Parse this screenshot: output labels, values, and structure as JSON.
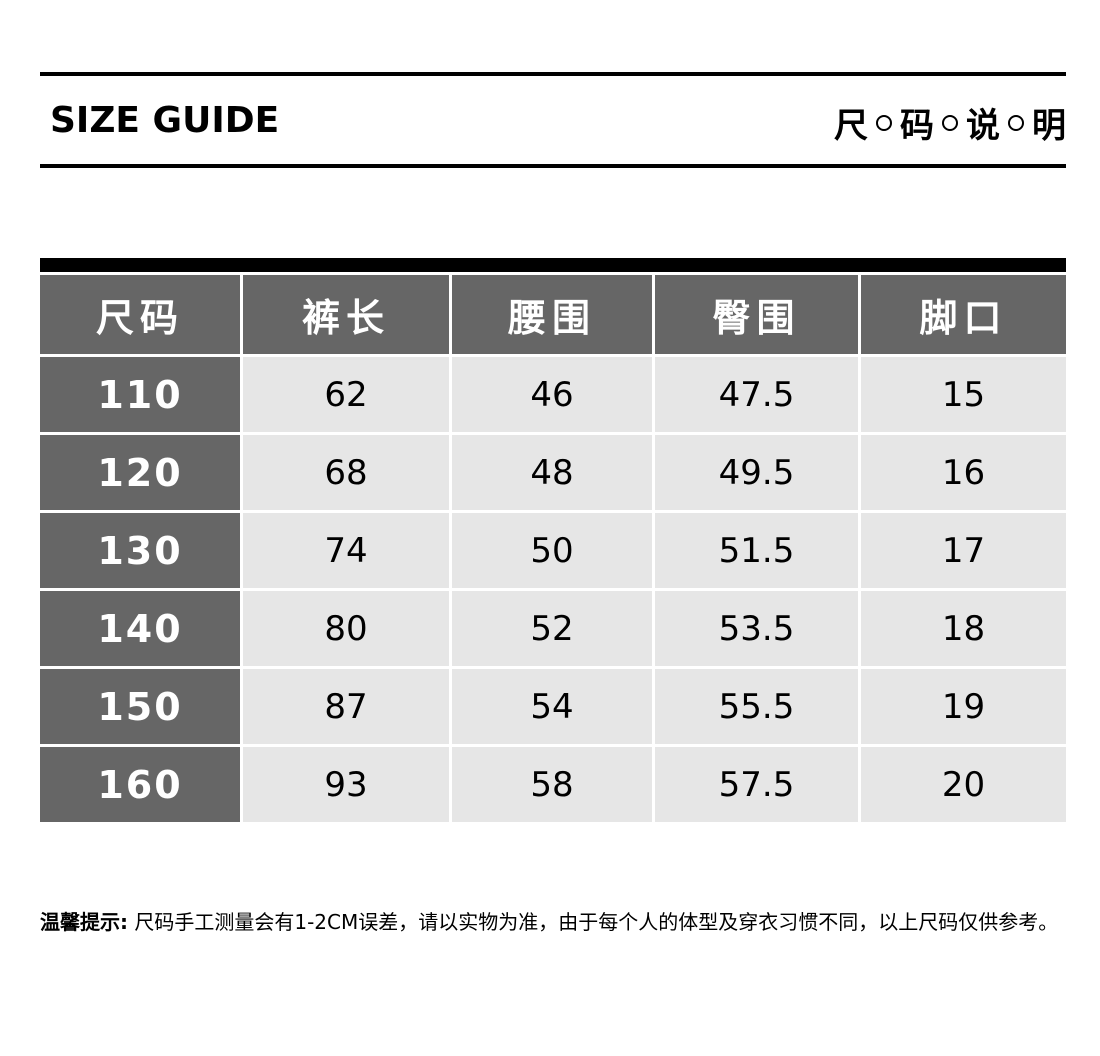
{
  "header": {
    "title_en": "SIZE GUIDE",
    "title_cn": [
      "尺",
      "码",
      "说",
      "明"
    ]
  },
  "table": {
    "columns": [
      "尺码",
      "裤长",
      "腰围",
      "臀围",
      "脚口"
    ],
    "rows": [
      [
        "110",
        "62",
        "46",
        "47.5",
        "15"
      ],
      [
        "120",
        "68",
        "48",
        "49.5",
        "16"
      ],
      [
        "130",
        "74",
        "50",
        "51.5",
        "17"
      ],
      [
        "140",
        "80",
        "52",
        "53.5",
        "18"
      ],
      [
        "150",
        "87",
        "54",
        "55.5",
        "19"
      ],
      [
        "160",
        "93",
        "58",
        "57.5",
        "20"
      ]
    ]
  },
  "note": {
    "label": "温馨提示:",
    "text": " 尺码手工测量会有1-2CM误差，请以实物为准，由于每个人的体型及穿衣习惯不同，以上尺码仅供参考。"
  },
  "colors": {
    "header_bg": "#666666",
    "cell_bg": "#e6e6e6",
    "rule": "#000000"
  }
}
